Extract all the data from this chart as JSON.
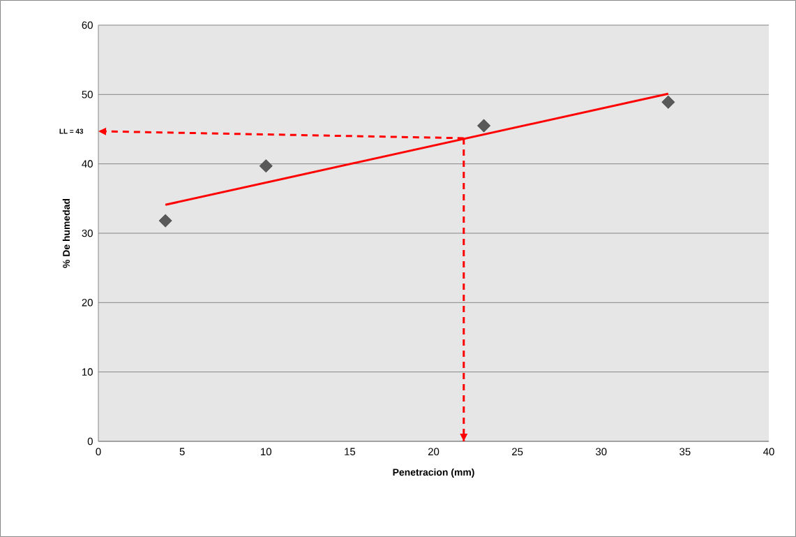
{
  "chart_data": {
    "type": "scatter",
    "xlabel": "Penetracion (mm)",
    "ylabel": "% De humedad",
    "xlim": [
      0,
      40
    ],
    "xticks": [
      0,
      5,
      10,
      15,
      20,
      25,
      30,
      35,
      40
    ],
    "ylim": [
      0,
      60
    ],
    "yticks": [
      0,
      10,
      20,
      30,
      40,
      50,
      60
    ],
    "grid": "y",
    "series": [
      {
        "marker": "diamond",
        "color": "#595959",
        "x": [
          4,
          10,
          23,
          34
        ],
        "values": [
          31.8,
          39.7,
          45.5,
          48.9
        ]
      },
      {
        "type": "line",
        "marker": "none",
        "line_style": "solid",
        "color": "#ff0000",
        "x": [
          4,
          34
        ],
        "values": [
          34.1,
          50.1
        ]
      },
      {
        "type": "line",
        "marker": "none",
        "line_style": "dashed",
        "color": "#ff0000",
        "x": [
          21.8,
          0
        ],
        "values": [
          43.7,
          44.7
        ]
      },
      {
        "type": "line",
        "marker": "none",
        "line_style": "dashed",
        "color": "#ff0000",
        "x": [
          21.8,
          21.8
        ],
        "values": [
          43.7,
          0
        ]
      }
    ],
    "annotations": [
      {
        "text": "LL = 43",
        "x": 0,
        "y": 44.7
      }
    ]
  }
}
